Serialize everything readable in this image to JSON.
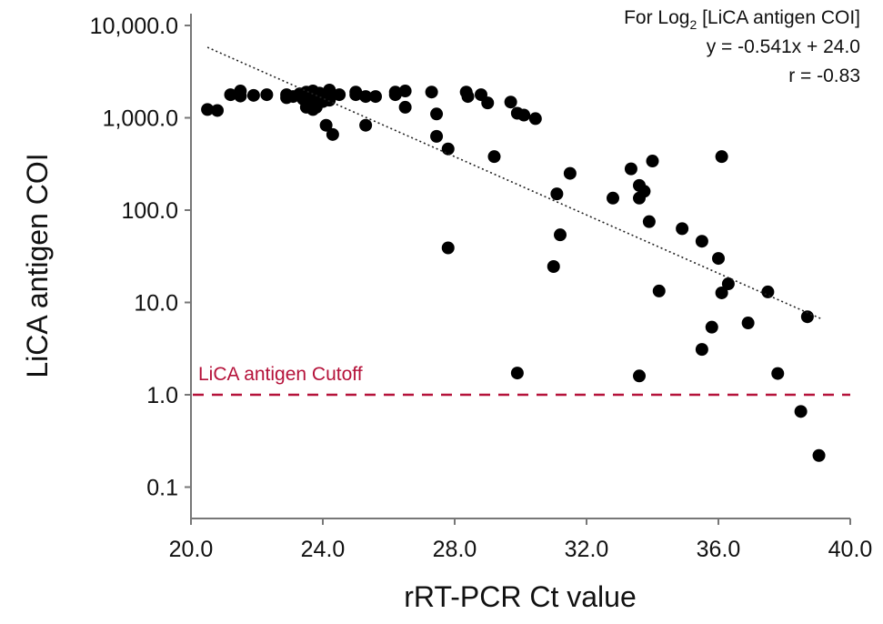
{
  "chart_data": {
    "type": "scatter",
    "title": "",
    "xlabel": "rRT-PCR Ct value",
    "ylabel": "LiCA antigen COI",
    "xlim": [
      20,
      40
    ],
    "ylim": [
      0.05,
      14000
    ],
    "yscale": "log",
    "grid": false,
    "x_ticks": [
      20,
      24,
      28,
      32,
      36,
      40
    ],
    "x_tick_labels": [
      "20.0",
      "24.0",
      "28.0",
      "32.0",
      "36.0",
      "40.0"
    ],
    "y_ticks": [
      0.1,
      1,
      10,
      100,
      1000,
      10000
    ],
    "y_tick_labels": [
      "0.1",
      "1.0",
      "10.0",
      "100.0",
      "1,000.0",
      "10,000.0"
    ],
    "points": [
      [
        20.5,
        1230
      ],
      [
        20.8,
        1200
      ],
      [
        21.2,
        1780
      ],
      [
        21.5,
        1950
      ],
      [
        21.5,
        1720
      ],
      [
        21.9,
        1750
      ],
      [
        22.3,
        1780
      ],
      [
        22.9,
        1780
      ],
      [
        22.9,
        1650
      ],
      [
        23.1,
        1700
      ],
      [
        23.3,
        1820
      ],
      [
        23.5,
        1900
      ],
      [
        23.4,
        1600
      ],
      [
        23.7,
        1650
      ],
      [
        23.7,
        1950
      ],
      [
        23.9,
        1850
      ],
      [
        23.8,
        1300
      ],
      [
        24.0,
        1500
      ],
      [
        24.1,
        1780
      ],
      [
        24.2,
        2000
      ],
      [
        24.2,
        1550
      ],
      [
        24.5,
        1780
      ],
      [
        25.0,
        1780
      ],
      [
        25.0,
        1900
      ],
      [
        25.3,
        1700
      ],
      [
        25.6,
        1700
      ],
      [
        26.2,
        1780
      ],
      [
        26.2,
        1900
      ],
      [
        26.5,
        1950
      ],
      [
        26.5,
        1300
      ],
      [
        25.3,
        830
      ],
      [
        24.1,
        830
      ],
      [
        24.3,
        660
      ],
      [
        23.5,
        1300
      ],
      [
        23.7,
        1230
      ],
      [
        24.0,
        1750
      ],
      [
        27.3,
        1900
      ],
      [
        27.45,
        1100
      ],
      [
        27.45,
        630
      ],
      [
        27.8,
        460
      ],
      [
        27.8,
        39
      ],
      [
        28.35,
        1900
      ],
      [
        28.4,
        1700
      ],
      [
        28.8,
        1780
      ],
      [
        29.0,
        1450
      ],
      [
        29.2,
        380
      ],
      [
        29.7,
        1480
      ],
      [
        29.9,
        1120
      ],
      [
        30.1,
        1070
      ],
      [
        30.45,
        980
      ],
      [
        29.9,
        1.72
      ],
      [
        31.0,
        24.5
      ],
      [
        31.1,
        150
      ],
      [
        31.2,
        54
      ],
      [
        31.5,
        250
      ],
      [
        32.8,
        135
      ],
      [
        33.35,
        280
      ],
      [
        33.6,
        185
      ],
      [
        33.6,
        135
      ],
      [
        33.75,
        160
      ],
      [
        33.9,
        75
      ],
      [
        34.0,
        340
      ],
      [
        34.2,
        13.3
      ],
      [
        33.6,
        1.6
      ],
      [
        34.9,
        63
      ],
      [
        35.5,
        46
      ],
      [
        35.8,
        5.4
      ],
      [
        35.5,
        3.1
      ],
      [
        36.1,
        380
      ],
      [
        36.0,
        30
      ],
      [
        36.1,
        12.7
      ],
      [
        36.3,
        15.9
      ],
      [
        36.9,
        6.0
      ],
      [
        37.5,
        13
      ],
      [
        37.8,
        1.7
      ],
      [
        38.7,
        7.0
      ],
      [
        38.5,
        0.66
      ],
      [
        39.05,
        0.22
      ]
    ],
    "trendline": {
      "style": "dotted",
      "points": [
        [
          20.5,
          5800
        ],
        [
          39.1,
          6.7
        ]
      ]
    },
    "cutoff": {
      "value": 1.0,
      "label": "LiCA antigen Cutoff",
      "color": "#b5123a",
      "style": "dashed"
    },
    "annotation": {
      "line1_prefix": "For Log",
      "line1_sub": "2",
      "line1_suffix": " [LiCA antigen COI]",
      "equation": "y = -0.541x + 24.0",
      "r": "r = -0.83"
    }
  }
}
